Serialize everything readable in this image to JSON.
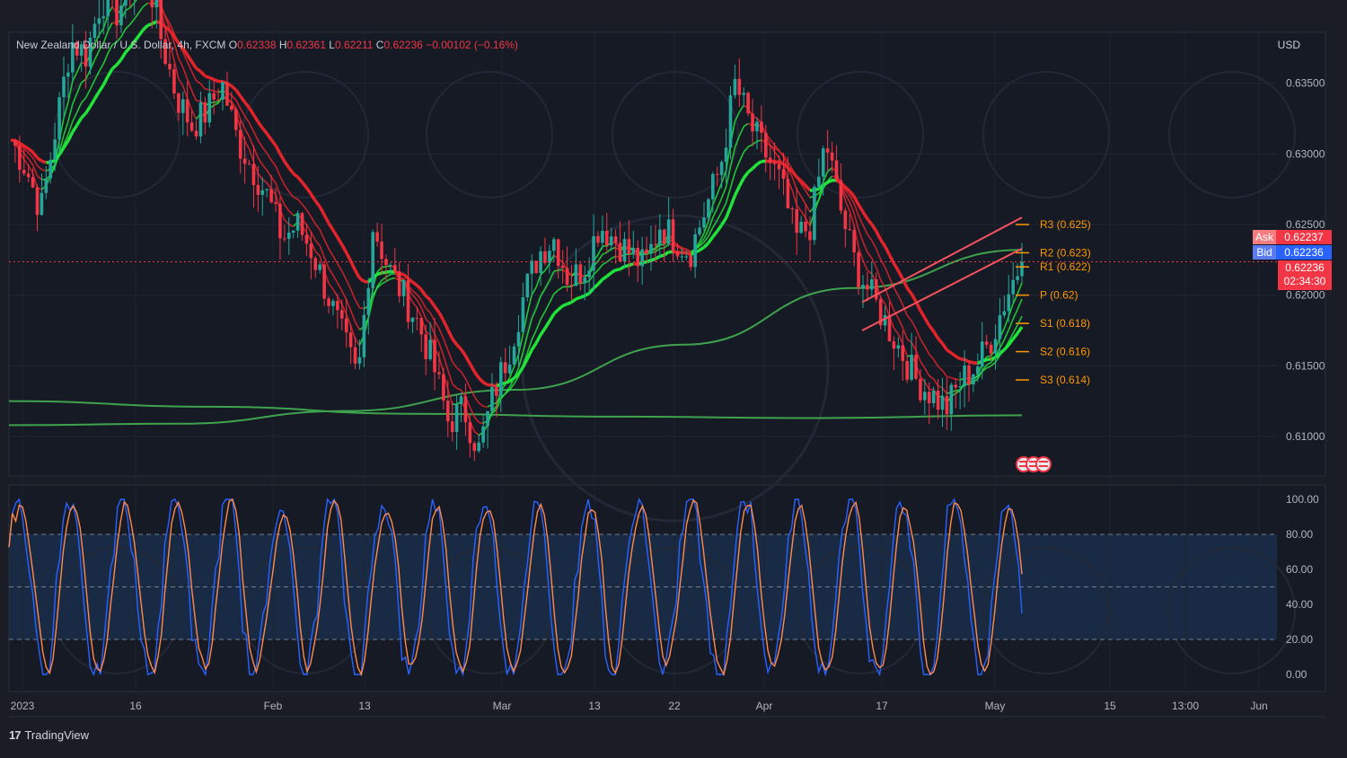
{
  "header": {
    "symbol": "New Zealand Dollar / U.S. Dollar, 4h, FXCM",
    "o_label": "O",
    "open": "0.62338",
    "h_label": "H",
    "high": "0.62361",
    "l_label": "L",
    "low": "0.62211",
    "c_label": "C",
    "close": "0.62236",
    "change": "−0.00102 (−0.16%)"
  },
  "currency": "USD",
  "quote": {
    "ask_label": "Ask",
    "ask": "0.62237",
    "bid_label": "Bid",
    "bid": "0.62236",
    "last": "0.62236",
    "countdown": "02:34:30"
  },
  "brand": "TradingView",
  "colors": {
    "up": "#26a69a",
    "down": "#f23645",
    "ask": "#f23645",
    "bid": "#2962ff",
    "pivot": "#ff9800"
  },
  "chart_data": [
    {
      "type": "line",
      "price_axis": {
        "ticks": [
          0.635,
          0.63,
          0.625,
          0.62,
          0.615,
          0.61
        ],
        "labels": [
          "0.63500",
          "0.63000",
          "0.62500",
          "0.62000",
          "0.61500",
          "0.61000"
        ],
        "ylim": [
          0.6072,
          0.6386
        ]
      },
      "time_axis": {
        "labels": [
          "2023",
          "16",
          "Feb",
          "13",
          "Mar",
          "13",
          "22",
          "Apr",
          "17",
          "May",
          "15",
          "13:00",
          "Jun"
        ]
      },
      "price_line": 0.62236,
      "pivots": [
        {
          "label": "R3 (0.625)",
          "value": 0.625
        },
        {
          "label": "R2 (0.623)",
          "value": 0.623
        },
        {
          "label": "R1 (0.622)",
          "value": 0.622
        },
        {
          "label": "P (0.62)",
          "value": 0.62
        },
        {
          "label": "S1 (0.618)",
          "value": 0.618
        },
        {
          "label": "S2 (0.616)",
          "value": 0.616
        },
        {
          "label": "S3 (0.614)",
          "value": 0.614
        }
      ],
      "close_path": [
        0.631,
        0.629,
        0.626,
        0.632,
        0.638,
        0.637,
        0.641,
        0.64,
        0.642,
        0.643,
        0.638,
        0.634,
        0.632,
        0.633,
        0.635,
        0.631,
        0.629,
        0.627,
        0.624,
        0.625,
        0.623,
        0.62,
        0.617,
        0.614,
        0.625,
        0.622,
        0.62,
        0.618,
        0.615,
        0.611,
        0.612,
        0.609,
        0.613,
        0.616,
        0.62,
        0.623,
        0.624,
        0.621,
        0.622,
        0.625,
        0.624,
        0.623,
        0.622,
        0.625,
        0.624,
        0.623,
        0.626,
        0.629,
        0.635,
        0.632,
        0.63,
        0.628,
        0.624,
        0.625,
        0.631,
        0.626,
        0.622,
        0.62,
        0.618,
        0.616,
        0.614,
        0.613,
        0.612,
        0.614,
        0.615,
        0.617,
        0.62,
        0.6225
      ],
      "ema_slow_a": [
        0.6125,
        0.6121,
        0.6116,
        0.6114,
        0.6113,
        0.6115
      ],
      "ema_slow_b": [
        0.6108,
        0.6109,
        0.6118,
        0.6133,
        0.6165,
        0.6205,
        0.6232
      ]
    },
    {
      "type": "line",
      "title": "",
      "levels": [
        100,
        80,
        60,
        40,
        20,
        0
      ],
      "labels": [
        "100.00",
        "80.00",
        "60.00",
        "40.00",
        "20.00",
        "0.00"
      ],
      "band": [
        20,
        80
      ],
      "dashed": [
        80,
        50,
        20
      ]
    }
  ]
}
